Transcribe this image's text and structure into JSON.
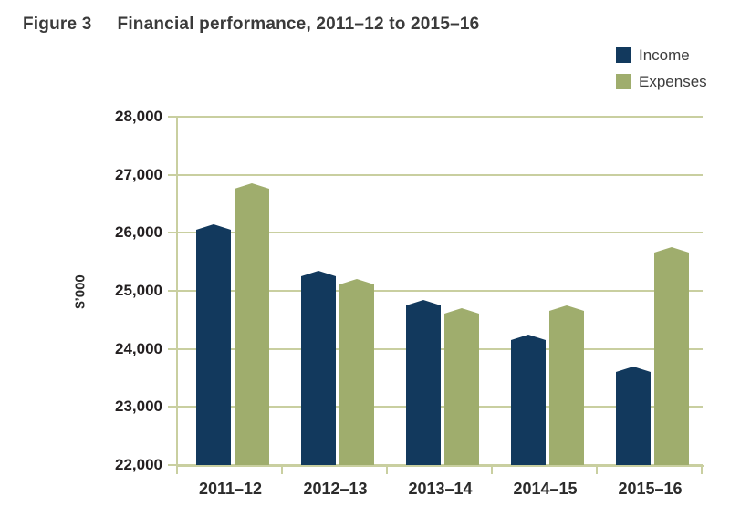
{
  "title": {
    "figure_label": "Figure 3",
    "text": "Financial performance, 2011–12 to 2015–16"
  },
  "legend": [
    {
      "label": "Income",
      "color": "#12395d"
    },
    {
      "label": "Expenses",
      "color": "#9fad6d"
    }
  ],
  "chart_data": {
    "type": "bar",
    "title": "Figure 3 Financial performance, 2011–12 to 2015–16",
    "categories": [
      "2011–12",
      "2012–13",
      "2013–14",
      "2014–15",
      "2015–16"
    ],
    "series": [
      {
        "name": "Income",
        "color": "#12395d",
        "values": [
          26100,
          25300,
          24800,
          24200,
          23650
        ]
      },
      {
        "name": "Expenses",
        "color": "#9fad6d",
        "values": [
          26800,
          25150,
          24650,
          24700,
          25700
        ]
      }
    ],
    "xlabel": "",
    "ylabel": "$’000",
    "ylim": [
      22000,
      28000
    ],
    "ytick_step": 1000,
    "ytick_labels": [
      "22,000",
      "23,000",
      "24,000",
      "25,000",
      "26,000",
      "27,000",
      "28,000"
    ],
    "grid": true,
    "gridline_color": "#c9cfa0",
    "legend_position": "top-right",
    "bar_top_style": "pointed"
  }
}
